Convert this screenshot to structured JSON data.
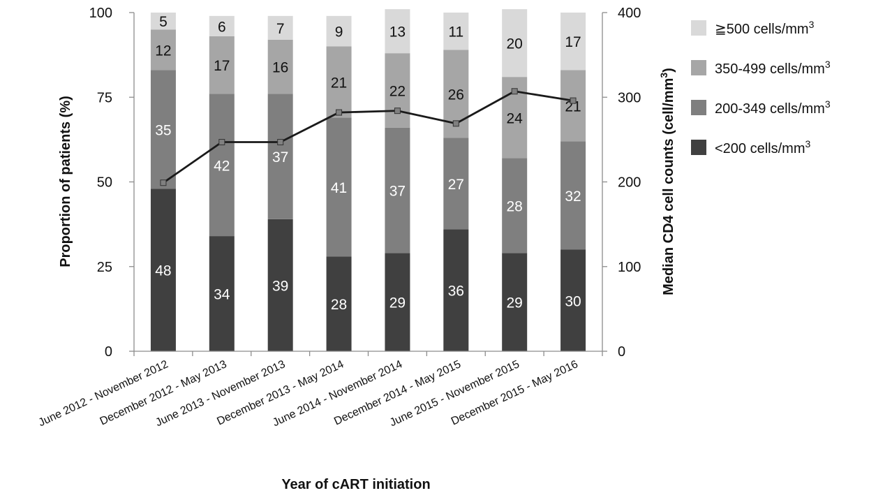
{
  "chart_data": {
    "type": "bar",
    "stacked": true,
    "categories": [
      "June 2012 - November 2012",
      "December 2012 - May 2013",
      "June 2013 - November 2013",
      "December 2013 - May 2014",
      "June 2014 - November 2014",
      "December 2014 - May 2015",
      "June 2015 - November 2015",
      "December 2015 - May 2016"
    ],
    "series": [
      {
        "name": "<200 cells/mm3",
        "legend_main": "<200 cells/mm",
        "legend_sup": "3",
        "color": "#404040",
        "label_color": "#ffffff",
        "values": [
          48,
          34,
          39,
          28,
          29,
          36,
          29,
          30
        ]
      },
      {
        "name": "200-349 cells/mm3",
        "legend_main": "200-349 cells/mm",
        "legend_sup": "3",
        "color": "#7f7f7f",
        "label_color": "#ffffff",
        "values": [
          35,
          42,
          37,
          41,
          37,
          27,
          28,
          32
        ]
      },
      {
        "name": "350-499 cells/mm3",
        "legend_main": "350-499 cells/mm",
        "legend_sup": "3",
        "color": "#a6a6a6",
        "label_color": "#111111",
        "values": [
          12,
          17,
          16,
          21,
          22,
          26,
          24,
          21
        ]
      },
      {
        "name": "≧500 cells/mm3",
        "legend_main": "≧500 cells/mm",
        "legend_sup": "3",
        "color": "#d9d9d9",
        "label_color": "#111111",
        "values": [
          5,
          6,
          7,
          9,
          13,
          11,
          20,
          17
        ]
      }
    ],
    "line_series": {
      "name": "Median CD4 cell counts",
      "axis": "right",
      "color": "#1a1a1a",
      "marker_color": "#808080",
      "values": [
        199,
        247,
        247,
        282,
        284,
        269,
        307,
        296
      ]
    },
    "xlabel": "Year of cART initiation",
    "ylabel": "Proportion of patients (%)",
    "y2label_main": "Median CD4 cell counts (cell/mm",
    "y2label_sup": "3",
    "y2label_end": ")",
    "ylim": [
      0,
      100
    ],
    "y2lim": [
      0,
      400
    ],
    "yticks": [
      0,
      25,
      50,
      75,
      100
    ],
    "y2ticks": [
      0,
      100,
      200,
      300,
      400
    ],
    "legend_position": "right",
    "grid": false
  }
}
